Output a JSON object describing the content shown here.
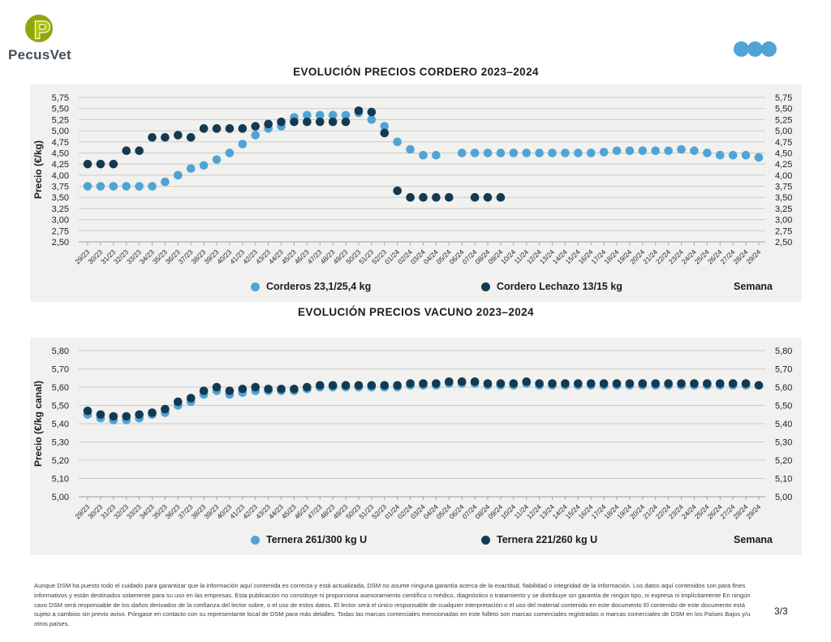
{
  "header": {
    "brand": "PecusVet",
    "logo_letter": "P"
  },
  "colors": {
    "light_blue": "#4FA4D5",
    "dark_navy": "#143A52",
    "panel_bg": "#F1F1EF",
    "grid": "#CBCBCB",
    "axis": "#9A9A9A",
    "logo_olive": "#94A40D",
    "logo_lime": "#AACB11",
    "brand_text": "#44505C"
  },
  "footer": {
    "disclaimer": "Aunque DSM ha puesto todo el cuidado para garantizar que la información aquí contenida es correcta y está actualizada, DSM no asume ninguna garantía acerca de la exactitud, fiabilidad o integridad de la información. Los datos aquí contenidos son para fines informativos y están destinados solamente para su uso en las empresas. Esta publicación no constituye ni proporciona asesoramiento científico o médico, diagnóstico o tratamiento y se distribuye sin garantía de ningún tipo, ni expresa ni implícitamente En ningún caso DSM será responsable de los daños derivados de la confianza del lector sobre, o el uso de estos datos. El lector será el único responsable de cualquier interpretación o el uso del material contenido en este documento El contenido de este documento está sujeto a cambios sin previo aviso. Póngase en contacto con su representante local de DSM para más detalles. Todas las marcas comerciales mencionadas en este folleto son marcas comerciales registradas o marcas comerciales de DSM en los Países Bajos y/u otros países.",
    "page_number": "3/3"
  },
  "chart_data": [
    {
      "type": "scatter",
      "title": "EVOLUCIÓN PRECIOS CORDERO 2023–2024",
      "ylabel": "Precio (€/kg)",
      "xlabel": "Semana",
      "ylim": [
        2.5,
        5.75
      ],
      "ytick_step": 0.25,
      "grid": true,
      "legend_position": "bottom",
      "categories": [
        "29/23",
        "30/23",
        "31/23",
        "32/23",
        "33/23",
        "34/23",
        "35/23",
        "36/23",
        "37/23",
        "38/23",
        "39/23",
        "40/23",
        "41/23",
        "42/23",
        "43/23",
        "44/23",
        "45/23",
        "46/23",
        "47/23",
        "48/23",
        "49/23",
        "50/23",
        "51/23",
        "52/23",
        "01/24",
        "02/24",
        "03/24",
        "04/24",
        "05/24",
        "06/24",
        "07/24",
        "08/24",
        "09/24",
        "10/24",
        "11/24",
        "12/24",
        "13/24",
        "14/24",
        "15/24",
        "16/24",
        "17/24",
        "18/24",
        "19/24",
        "20/24",
        "21/24",
        "22/24",
        "23/24",
        "24/24",
        "25/24",
        "26/24",
        "27/24",
        "28/24",
        "29/24"
      ],
      "series": [
        {
          "name": "Corderos 23,1/25,4 kg",
          "color": "#4FA4D5",
          "values": [
            3.75,
            3.75,
            3.75,
            3.75,
            3.75,
            3.75,
            3.85,
            4.0,
            4.15,
            4.22,
            4.35,
            4.5,
            4.7,
            4.9,
            5.05,
            5.1,
            5.3,
            5.35,
            5.35,
            5.35,
            5.35,
            5.4,
            5.25,
            5.1,
            4.75,
            4.58,
            4.45,
            4.45,
            null,
            4.5,
            4.5,
            4.5,
            4.5,
            4.5,
            4.5,
            4.5,
            4.5,
            4.5,
            4.5,
            4.5,
            4.52,
            4.55,
            4.55,
            4.55,
            4.55,
            4.55,
            4.58,
            4.55,
            4.5,
            4.45,
            4.45,
            4.45,
            4.4
          ]
        },
        {
          "name": "Cordero Lechazo 13/15 kg",
          "color": "#143A52",
          "values": [
            4.25,
            4.25,
            4.25,
            4.55,
            4.55,
            4.85,
            4.85,
            4.9,
            4.85,
            5.05,
            5.05,
            5.05,
            5.05,
            5.1,
            5.15,
            5.2,
            5.2,
            5.2,
            5.2,
            5.2,
            5.2,
            5.45,
            5.42,
            4.95,
            3.65,
            3.5,
            3.5,
            3.5,
            3.5,
            null,
            3.5,
            3.5,
            3.5,
            null,
            null,
            null,
            null,
            null,
            null,
            null,
            null,
            null,
            null,
            null,
            null,
            null,
            null,
            null,
            null,
            null,
            null,
            null,
            null
          ]
        }
      ]
    },
    {
      "type": "scatter",
      "title": "EVOLUCIÓN PRECIOS VACUNO 2023–2024",
      "ylabel": "Precio (€/kg canal)",
      "xlabel": "Semana",
      "ylim": [
        5.0,
        5.8
      ],
      "ytick_step": 0.1,
      "grid": true,
      "legend_position": "bottom",
      "categories": [
        "29/23",
        "30/23",
        "31/23",
        "32/23",
        "33/23",
        "34/23",
        "35/23",
        "36/23",
        "37/23",
        "38/23",
        "39/23",
        "40/23",
        "41/23",
        "42/23",
        "43/23",
        "44/23",
        "45/23",
        "46/23",
        "47/23",
        "48/23",
        "49/23",
        "50/23",
        "51/23",
        "52/23",
        "01/24",
        "02/24",
        "03/24",
        "04/24",
        "05/24",
        "06/24",
        "07/24",
        "08/24",
        "09/24",
        "10/24",
        "11/24",
        "12/24",
        "13/24",
        "14/24",
        "15/24",
        "16/24",
        "17/24",
        "18/24",
        "19/24",
        "20/24",
        "21/24",
        "22/24",
        "23/24",
        "24/24",
        "25/24",
        "26/24",
        "27/24",
        "28/24",
        "29/24"
      ],
      "series": [
        {
          "name": "Ternera 261/300 kg U",
          "color": "#4FA4D5",
          "values": [
            5.45,
            5.43,
            5.42,
            5.42,
            5.43,
            5.45,
            5.46,
            5.5,
            5.52,
            5.56,
            5.58,
            5.56,
            5.57,
            5.58,
            5.58,
            5.58,
            5.58,
            5.59,
            5.6,
            5.6,
            5.6,
            5.6,
            5.6,
            5.6,
            5.6,
            5.61,
            5.61,
            5.61,
            5.62,
            5.62,
            5.62,
            5.61,
            5.61,
            5.61,
            5.62,
            5.61,
            5.61,
            5.61,
            5.61,
            5.61,
            5.61,
            5.61,
            5.61,
            5.61,
            5.61,
            5.61,
            5.61,
            5.61,
            5.61,
            5.61,
            5.61,
            5.61,
            5.61
          ]
        },
        {
          "name": "Ternera 221/260 kg U",
          "color": "#143A52",
          "values": [
            5.47,
            5.45,
            5.44,
            5.44,
            5.45,
            5.46,
            5.48,
            5.52,
            5.54,
            5.58,
            5.6,
            5.58,
            5.59,
            5.6,
            5.59,
            5.59,
            5.59,
            5.6,
            5.61,
            5.61,
            5.61,
            5.61,
            5.61,
            5.61,
            5.61,
            5.62,
            5.62,
            5.62,
            5.63,
            5.63,
            5.63,
            5.62,
            5.62,
            5.62,
            5.63,
            5.62,
            5.62,
            5.62,
            5.62,
            5.62,
            5.62,
            5.62,
            5.62,
            5.62,
            5.62,
            5.62,
            5.62,
            5.62,
            5.62,
            5.62,
            5.62,
            5.62,
            5.61
          ]
        }
      ]
    }
  ]
}
